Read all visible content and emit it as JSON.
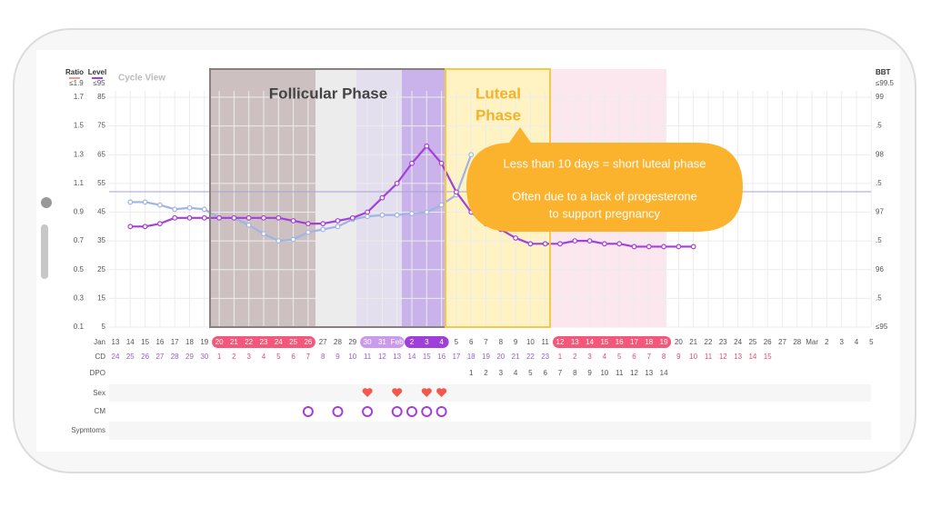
{
  "header": {
    "view": "Cycle View",
    "bbt_label": "BBT",
    "ratio_max": "≤1.9",
    "level_max": "≤95",
    "bbt_max": "≤99.5"
  },
  "axes": {
    "ratio_ticks": [
      1.7,
      1.5,
      1.3,
      1.1,
      0.9,
      0.7,
      0.5,
      0.3,
      0.1
    ],
    "level_ticks": [
      85,
      75,
      65,
      55,
      45,
      35,
      25,
      15,
      5
    ],
    "bbt_ticks": [
      {
        "value": 99,
        "label": "99"
      },
      {
        "value": 98.5,
        "label": ".5"
      },
      {
        "value": 98,
        "label": "98"
      },
      {
        "value": 97.5,
        "label": ".5"
      },
      {
        "value": 97,
        "label": "97"
      },
      {
        "value": 96.5,
        "label": ".5"
      },
      {
        "value": 96,
        "label": "96"
      },
      {
        "value": 95.5,
        "label": ".5"
      },
      {
        "value": 95,
        "label": "≤95"
      }
    ]
  },
  "phases": {
    "follicular": "Follicular Phase",
    "luteal": [
      "Luteal",
      "Phase"
    ]
  },
  "callout": [
    "Less than 10 days = short luteal phase",
    "Often due to a lack of progesterone",
    "to support pregnancy"
  ],
  "row_labels": {
    "month": "Jan",
    "cd": "CD",
    "dpo": "DPO",
    "sex": "Sex",
    "cm": "CM",
    "symptoms": "Sypmtoms"
  },
  "dates": [
    "13",
    "14",
    "15",
    "16",
    "17",
    "18",
    "19",
    "20",
    "21",
    "22",
    "23",
    "24",
    "25",
    "26",
    "27",
    "28",
    "29",
    "30",
    "31",
    "Feb",
    "2",
    "3",
    "4",
    "5",
    "6",
    "7",
    "8",
    "9",
    "10",
    "11",
    "12",
    "13",
    "14",
    "15",
    "16",
    "17",
    "18",
    "19",
    "20",
    "21",
    "22",
    "23",
    "24",
    "25",
    "26",
    "27",
    "28",
    "Mar",
    "2",
    "3",
    "4",
    "5"
  ],
  "cd": [
    24,
    25,
    26,
    27,
    28,
    29,
    30,
    1,
    2,
    3,
    4,
    5,
    6,
    7,
    8,
    9,
    10,
    11,
    12,
    13,
    14,
    15,
    16,
    17,
    18,
    19,
    20,
    21,
    22,
    23,
    1,
    2,
    3,
    4,
    5,
    6,
    7,
    8,
    9,
    10,
    11,
    12,
    13,
    14,
    15
  ],
  "dpo": [
    1,
    2,
    3,
    4,
    5,
    6,
    7,
    8,
    9,
    10,
    11,
    12,
    13,
    14
  ],
  "series": [
    {
      "name": "Level",
      "color": "#a43fd9",
      "values": [
        null,
        40,
        40,
        41,
        43,
        43,
        43,
        43,
        43,
        43,
        43,
        43,
        42,
        41,
        41,
        42,
        43,
        45,
        50,
        55,
        62,
        68,
        62,
        52,
        45,
        41,
        39,
        36,
        34,
        34,
        34,
        35,
        35,
        34,
        34,
        33,
        33,
        33,
        33,
        33,
        null,
        null,
        null,
        null,
        null,
        null,
        null,
        null,
        null,
        null,
        null,
        null
      ]
    },
    {
      "name": "Ratio",
      "color": "#9fb4e4",
      "values": [
        null,
        0.97,
        0.97,
        0.95,
        0.92,
        0.93,
        0.92,
        0.86,
        0.86,
        0.81,
        0.75,
        0.7,
        0.71,
        0.76,
        0.78,
        0.8,
        0.85,
        0.87,
        0.88,
        0.88,
        0.89,
        0.9,
        0.95,
        1.02,
        1.3,
        null,
        null,
        null,
        null,
        null,
        null,
        null,
        null,
        null,
        null,
        null,
        null,
        null,
        null,
        null,
        null,
        null,
        null,
        null,
        null,
        null,
        null,
        null,
        null,
        null,
        null,
        null
      ]
    }
  ]
}
